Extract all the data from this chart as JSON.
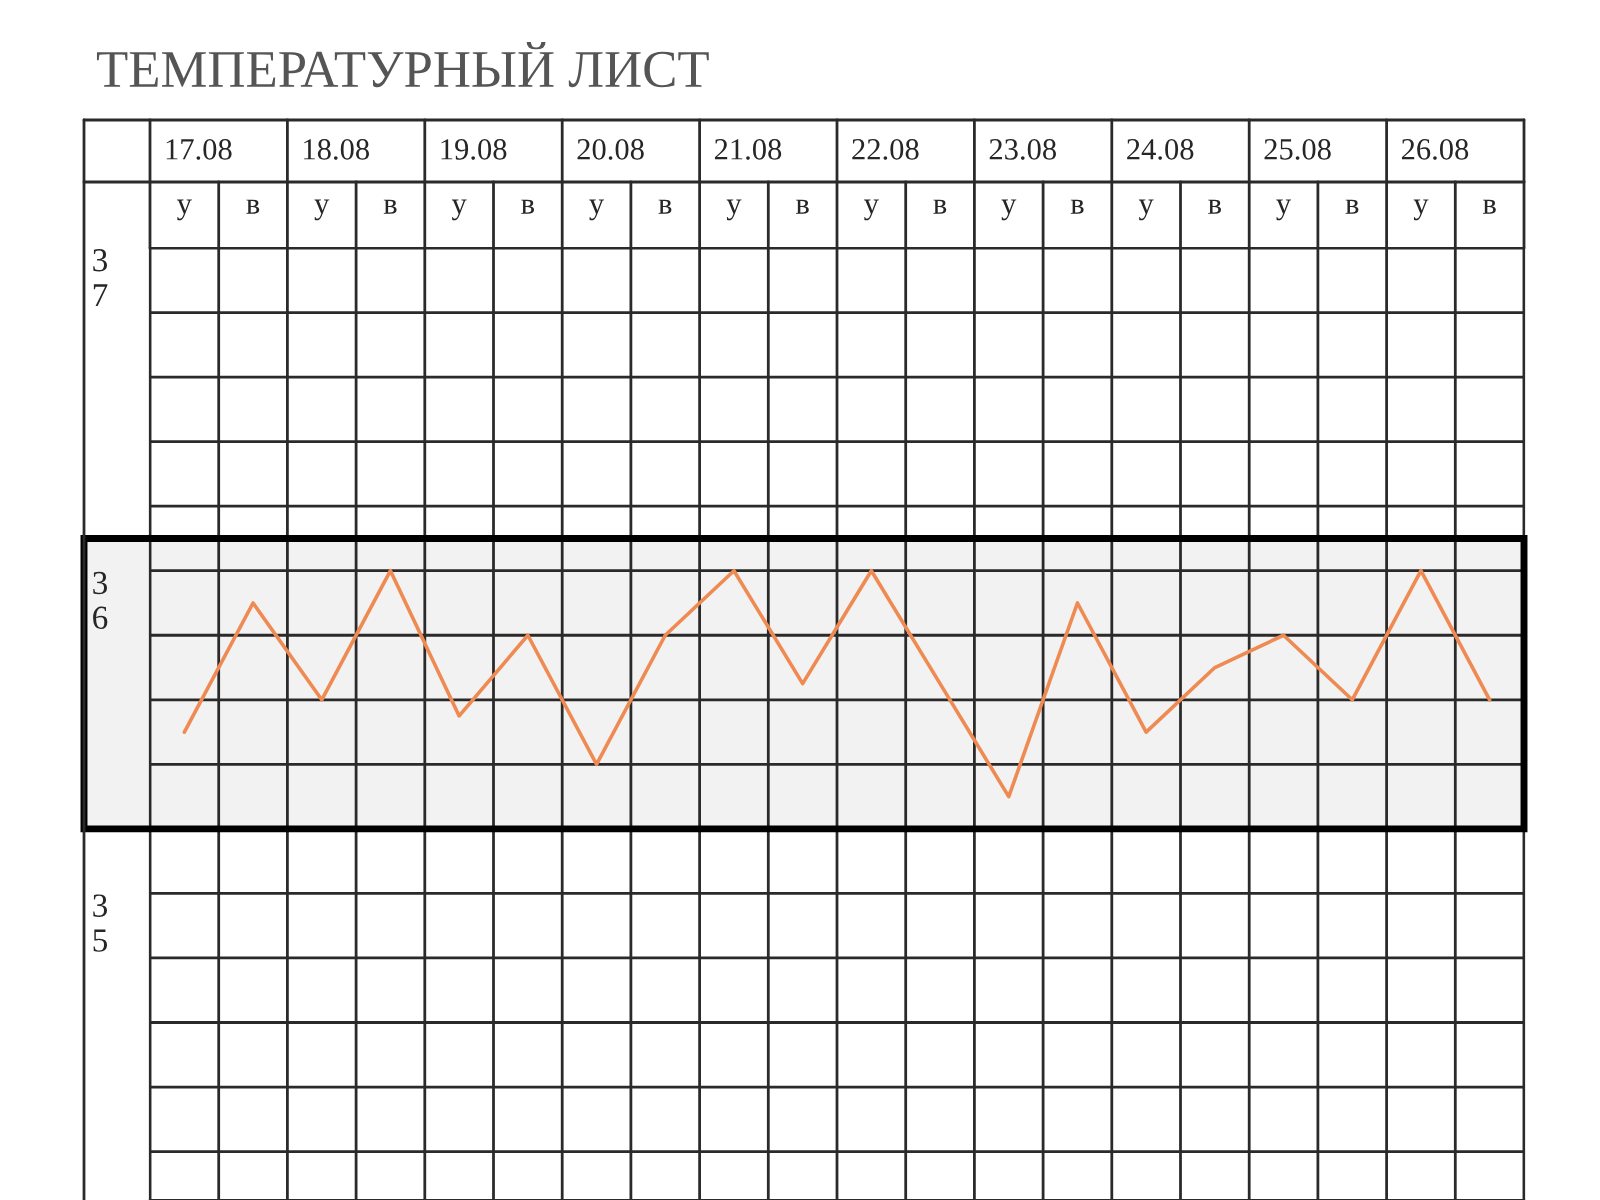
{
  "chart_data": {
    "type": "line",
    "title": "ТЕМПЕРАТУРНЫЙ ЛИСТ",
    "categories": [
      "у",
      "в",
      "у",
      "в",
      "у",
      "в",
      "у",
      "в",
      "у",
      "в",
      "у",
      "в",
      "у",
      "в",
      "у",
      "в",
      "у",
      "в",
      "у",
      "в"
    ],
    "annotations": [
      "17.08",
      "18.08",
      "19.08",
      "20.08",
      "21.08",
      "22.08",
      "23.08",
      "24.08",
      "25.08",
      "26.08"
    ],
    "series": [
      {
        "color": "#ee8a52",
        "values": [
          35.5,
          35.9,
          35.6,
          36.0,
          35.55,
          35.8,
          35.4,
          35.8,
          36.0,
          35.65,
          36.0,
          35.65,
          35.3,
          35.9,
          35.5,
          35.7,
          35.8,
          35.6,
          36.0,
          35.6
        ]
      }
    ],
    "ylim": [
      34.05,
      37.0
    ],
    "yticks": [
      37,
      36,
      35
    ],
    "bands": [
      {
        "axis": "y",
        "from": 35.2,
        "to": 36.1,
        "color": "#000000"
      }
    ],
    "grid": true,
    "marker": "none",
    "line_style": "solid"
  }
}
